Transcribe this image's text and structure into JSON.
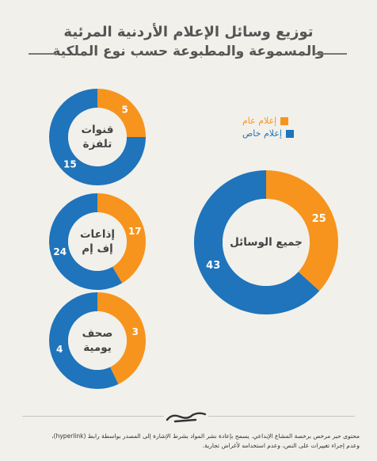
{
  "title": {
    "line1": "توزيع وسائل الإعلام الأردنية المرئية",
    "line2": "والمسموعة والمطبوعة حسب نوع الملكية"
  },
  "legend": [
    {
      "label": "إعلام عام",
      "color": "#f7941d"
    },
    {
      "label": "إعلام خاص",
      "color": "#1f74bb"
    }
  ],
  "colors": {
    "public": "#f7941d",
    "private": "#1f74bb",
    "hole": "#f2f0ea"
  },
  "chart_data": [
    {
      "type": "pie",
      "title": [
        "قنوات",
        "تلفزة"
      ],
      "slices": [
        {
          "name": "إعلام عام",
          "value": 5
        },
        {
          "name": "إعلام خاص",
          "value": 15
        }
      ]
    },
    {
      "type": "pie",
      "title": [
        "إذاعات",
        "إف إم"
      ],
      "slices": [
        {
          "name": "إعلام عام",
          "value": 17
        },
        {
          "name": "إعلام خاص",
          "value": 24
        }
      ]
    },
    {
      "type": "pie",
      "title": [
        "صحف",
        "يومية"
      ],
      "slices": [
        {
          "name": "إعلام عام",
          "value": 3
        },
        {
          "name": "إعلام خاص",
          "value": 4
        }
      ]
    },
    {
      "type": "pie",
      "title": [
        "جميع الوسائل"
      ],
      "slices": [
        {
          "name": "إعلام عام",
          "value": 25
        },
        {
          "name": "إعلام خاص",
          "value": 43
        }
      ]
    }
  ],
  "footer": {
    "line1": "محتوى حبر مرخص برخصة المشاع الإبداعي. يسمح بإعادة نشر المواد بشرط الإشارة إلى المصدر بواسطة رابط (hyperlink)،",
    "line2": "وعدم إجراء تغييرات على النص، وعدم استخدامه لأغراض تجارية."
  }
}
